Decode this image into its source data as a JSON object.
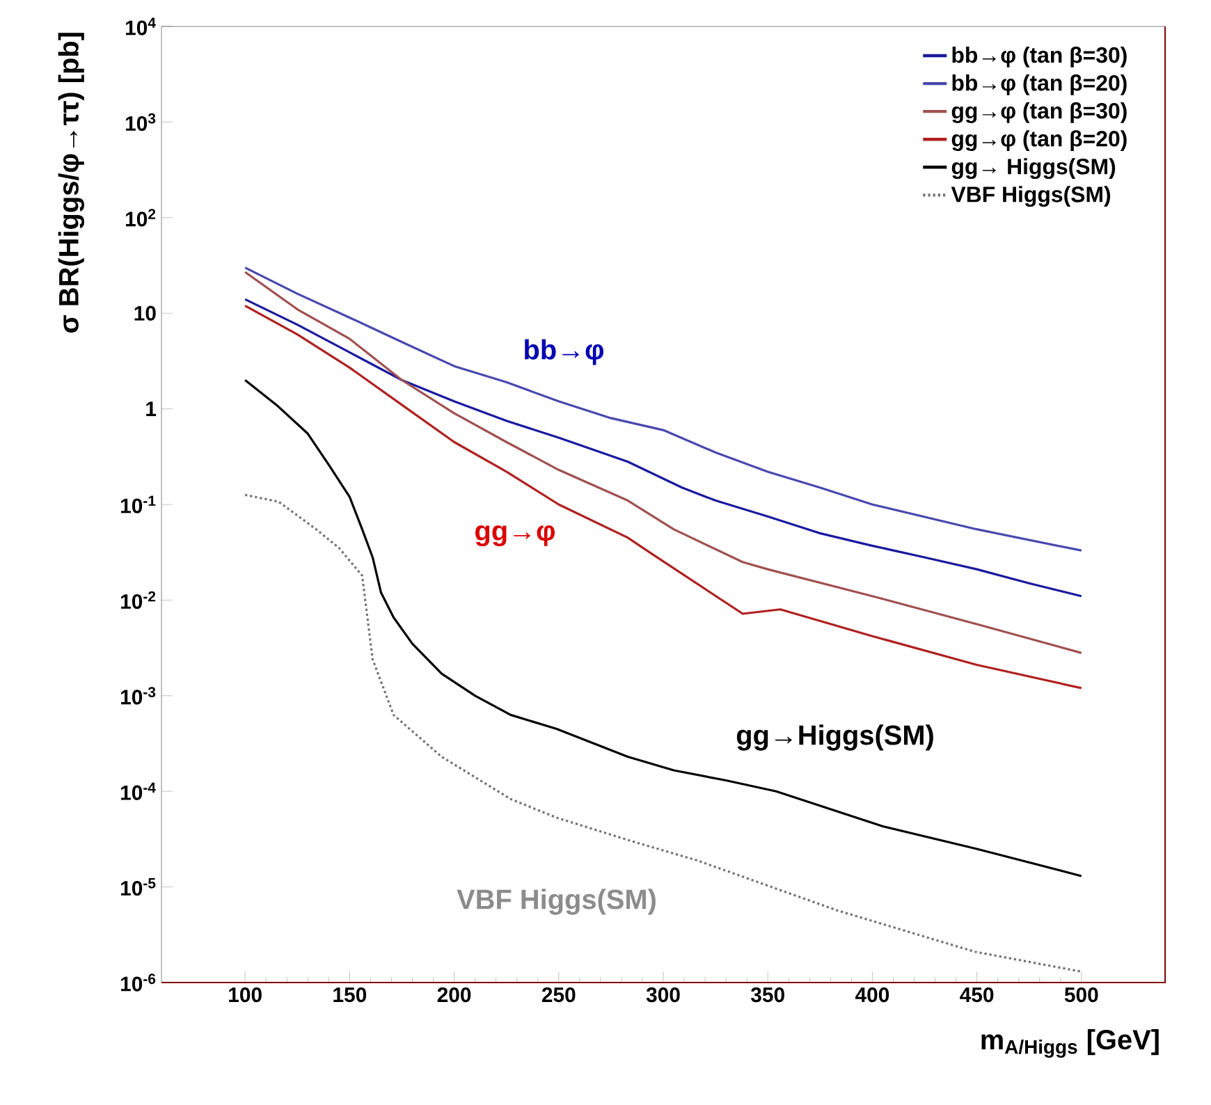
{
  "chart_data": {
    "type": "line",
    "xlabel": "m$_{A/Higgs}$ [GeV]",
    "ylabel": "σ BR(Higgs/φ→ττ) [pb]",
    "log": "y",
    "xlim": [
      60,
      540
    ],
    "ylim": [
      1e-06,
      10000.0
    ],
    "xticks": [
      100,
      150,
      200,
      250,
      300,
      350,
      400,
      450,
      500
    ],
    "yticks": [
      {
        "value": 1e-06,
        "label": "10$^{-6}$"
      },
      {
        "value": 1e-05,
        "label": "10$^{-5}$"
      },
      {
        "value": 0.0001,
        "label": "10$^{-4}$"
      },
      {
        "value": 0.001,
        "label": "10$^{-3}$"
      },
      {
        "value": 0.01,
        "label": "10$^{-2}$"
      },
      {
        "value": 0.1,
        "label": "10$^{-1}$"
      },
      1,
      10,
      {
        "value": 100,
        "label": "10$^{2}$"
      },
      {
        "value": 1000,
        "label": "10$^{3}$"
      },
      {
        "value": 10000,
        "label": "10$^{4}$"
      }
    ],
    "legend": "top right",
    "grid": false,
    "series": [
      {
        "name": "bb→φ (tan β=30)",
        "color": "#1a1aa0",
        "x": [
          100,
          125,
          150,
          175,
          200,
          225,
          250,
          283,
          309,
          325,
          350,
          375,
          400,
          425,
          450,
          475,
          500
        ],
        "values": [
          14,
          7.6,
          3.9,
          2,
          1.2,
          0.75,
          0.5,
          0.28,
          0.15,
          0.11,
          0.075,
          0.05,
          0.037,
          0.028,
          0.021,
          0.015,
          0.011
        ]
      },
      {
        "name": "bb→φ (tan β=20)",
        "color": "#4848b0",
        "x": [
          100,
          125,
          150,
          175,
          200,
          225,
          250,
          275,
          300,
          325,
          350,
          375,
          400,
          450,
          500
        ],
        "values": [
          30,
          16,
          9,
          5,
          2.8,
          1.9,
          1.2,
          0.8,
          0.6,
          0.35,
          0.22,
          0.15,
          0.1,
          0.055,
          0.033
        ]
      },
      {
        "name": "gg→φ (tan β=30)",
        "color": "#a05050",
        "x": [
          100,
          125,
          150,
          175,
          200,
          225,
          250,
          283,
          305,
          338,
          350,
          400,
          450,
          500
        ],
        "values": [
          27,
          11,
          5.4,
          2,
          0.9,
          0.45,
          0.23,
          0.11,
          0.055,
          0.025,
          0.021,
          0.011,
          0.0056,
          0.0028
        ]
      },
      {
        "name": "gg→φ (tan β=20)",
        "color": "#b02020",
        "x": [
          100,
          125,
          150,
          175,
          200,
          225,
          250,
          283,
          294,
          338,
          356,
          400,
          450,
          500
        ],
        "values": [
          12,
          6,
          2.7,
          1.1,
          0.45,
          0.22,
          0.1,
          0.045,
          0.031,
          0.0072,
          0.008,
          0.0042,
          0.0021,
          0.0012
        ]
      },
      {
        "name": "gg→ Higgs(SM)",
        "color": "#000000",
        "x": [
          100,
          115,
          130,
          140,
          150,
          156,
          161,
          165,
          171,
          180,
          194,
          210,
          227,
          249,
          283,
          305,
          330,
          354,
          405,
          450,
          500
        ],
        "values": [
          2,
          1.1,
          0.55,
          0.26,
          0.12,
          0.055,
          0.028,
          0.012,
          0.0066,
          0.0035,
          0.0017,
          0.001,
          0.00063,
          0.00045,
          0.00023,
          0.000166,
          0.00013,
          0.0001,
          4.3e-05,
          2.5e-05,
          1.3e-05
        ]
      },
      {
        "name": "VBF Higgs(SM)",
        "color": "#707070",
        "line_style": "dotted",
        "x": [
          100,
          116,
          134,
          145,
          156,
          161,
          171,
          194,
          227,
          249,
          283,
          316,
          383,
          449,
          500
        ],
        "values": [
          0.126,
          0.107,
          0.055,
          0.035,
          0.018,
          0.0024,
          0.00063,
          0.00023,
          8.3e-05,
          5.3e-05,
          3.1e-05,
          1.9e-05,
          5.7e-06,
          2.1e-06,
          1.3e-06
        ]
      }
    ],
    "annotations": [
      "bb→φ",
      "gg→φ",
      "gg→Higgs(SM)",
      "VBF Higgs(SM)"
    ]
  }
}
